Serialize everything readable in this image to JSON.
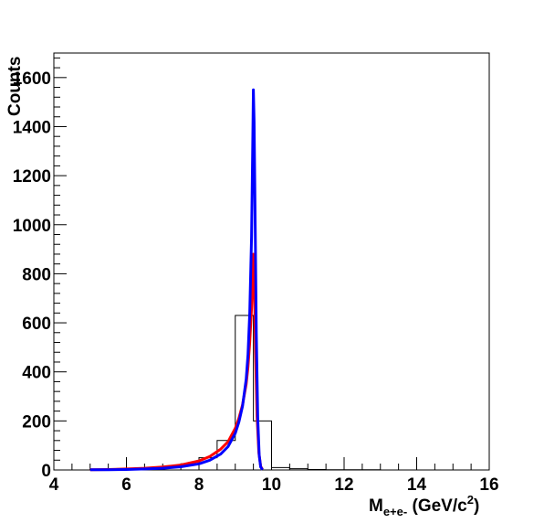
{
  "chart_data": {
    "type": "line",
    "title": "",
    "xlabel": {
      "main": "M",
      "sub": "e+e-",
      "unit_pre": " (GeV/c",
      "sup": "2",
      "unit_post": ")"
    },
    "ylabel": "Counts",
    "xlim": [
      4,
      16
    ],
    "ylim": [
      0,
      1700
    ],
    "x_ticks": [
      4,
      6,
      8,
      10,
      12,
      14,
      16
    ],
    "y_ticks": [
      0,
      200,
      400,
      600,
      800,
      1000,
      1200,
      1400,
      1600
    ],
    "grid": false,
    "legend": "none",
    "histogram": {
      "name": "",
      "color": "#000000",
      "bin_edges": [
        5.0,
        5.5,
        6.0,
        6.5,
        7.0,
        7.5,
        8.0,
        8.5,
        9.0,
        9.5,
        10.0,
        10.5,
        11.0,
        11.5,
        12.0,
        12.5,
        13.0,
        13.5,
        14.0,
        14.5,
        15.0
      ],
      "counts": [
        2,
        3,
        5,
        8,
        14,
        25,
        50,
        120,
        630,
        200,
        10,
        5,
        2,
        1,
        1,
        1,
        0,
        0,
        0,
        0
      ]
    },
    "series": [
      {
        "name": "",
        "color": "#ff0000",
        "x": [
          5.0,
          5.5,
          6.0,
          6.5,
          7.0,
          7.5,
          8.0,
          8.3,
          8.6,
          8.8,
          9.0,
          9.1,
          9.2,
          9.3,
          9.35,
          9.4,
          9.45,
          9.48,
          9.5,
          9.53,
          9.56,
          9.6,
          9.65,
          9.7,
          9.75
        ],
        "y": [
          1,
          2,
          4,
          7,
          12,
          20,
          37,
          55,
          85,
          115,
          170,
          210,
          265,
          350,
          420,
          520,
          660,
          780,
          880,
          740,
          480,
          220,
          70,
          15,
          2
        ]
      },
      {
        "name": "",
        "color": "#0000ff",
        "x": [
          5.0,
          5.5,
          6.0,
          6.5,
          7.0,
          7.5,
          8.0,
          8.3,
          8.6,
          8.8,
          9.0,
          9.1,
          9.2,
          9.3,
          9.35,
          9.4,
          9.45,
          9.48,
          9.5,
          9.52,
          9.55,
          9.58,
          9.62,
          9.66,
          9.7,
          9.75
        ],
        "y": [
          1,
          1,
          2,
          4,
          7,
          13,
          25,
          40,
          65,
          95,
          150,
          195,
          260,
          370,
          470,
          640,
          950,
          1300,
          1550,
          1420,
          1000,
          560,
          210,
          60,
          12,
          1
        ]
      }
    ]
  }
}
